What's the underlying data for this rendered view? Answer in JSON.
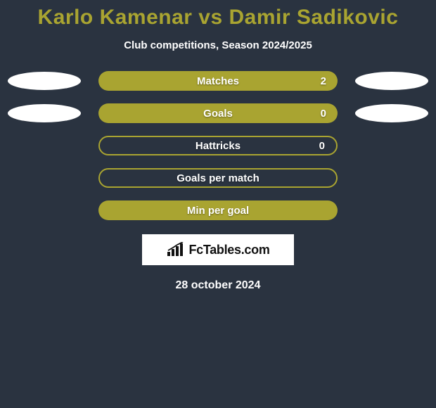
{
  "header": {
    "title": "Karlo Kamenar vs Damir Sadikovic",
    "subtitle": "Club competitions, Season 2024/2025"
  },
  "colors": {
    "accent": "#a9a431",
    "background": "#2a3340",
    "text": "#ffffff",
    "ellipse": "#ffffff"
  },
  "stats": [
    {
      "label": "Matches",
      "value": "2",
      "bar_style": "solid",
      "show_value": true,
      "ellipse_left": true,
      "ellipse_right": true
    },
    {
      "label": "Goals",
      "value": "0",
      "bar_style": "solid",
      "show_value": true,
      "ellipse_left": true,
      "ellipse_right": true
    },
    {
      "label": "Hattricks",
      "value": "0",
      "bar_style": "outline",
      "show_value": true,
      "ellipse_left": false,
      "ellipse_right": false
    },
    {
      "label": "Goals per match",
      "value": "",
      "bar_style": "outline",
      "show_value": false,
      "ellipse_left": false,
      "ellipse_right": false
    },
    {
      "label": "Min per goal",
      "value": "",
      "bar_style": "solid",
      "show_value": false,
      "ellipse_left": false,
      "ellipse_right": false
    }
  ],
  "logo": {
    "text": "FcTables.com"
  },
  "footer": {
    "date": "28 october 2024"
  }
}
